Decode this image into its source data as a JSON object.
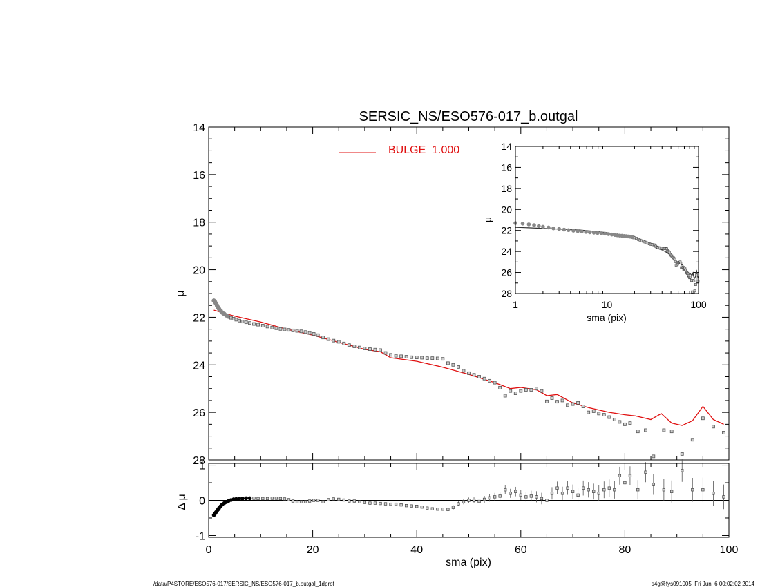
{
  "chart_data": [
    {
      "type": "scatter",
      "panel": "main",
      "title": "SERSIC_NS/ESO576-017_b.outgal",
      "xlabel": "sma (pix)",
      "ylabel": "μ",
      "xlim": [
        0,
        100
      ],
      "ylim": [
        28,
        14
      ],
      "x_ticks": [
        "0",
        "20",
        "40",
        "60",
        "80",
        "100"
      ],
      "y_ticks": [
        "14",
        "16",
        "18",
        "20",
        "22",
        "24",
        "26",
        "28"
      ],
      "legend": {
        "placement": "top-center",
        "label": "BULGE  1.000",
        "color": "#e01010"
      },
      "series": [
        {
          "kind": "points",
          "color": "#555555",
          "x": [
            1.0,
            1.2,
            1.4,
            1.6,
            1.8,
            2.0,
            2.3,
            2.6,
            3.0,
            3.4,
            3.8,
            4.3,
            4.8,
            5.3,
            5.9,
            6.5,
            7.2,
            7.9,
            8.7,
            9.5,
            10.4,
            11.3,
            12.2,
            13.0,
            13.8,
            14.6,
            15.4,
            16.2,
            17.0,
            17.8,
            18.6,
            19.4,
            20.2,
            21.0,
            22.0,
            23.0,
            24.0,
            25.0,
            26.0,
            27.0,
            28.0,
            29.0,
            30.0,
            31.0,
            32.0,
            33.0,
            34.0,
            35.0,
            36.0,
            37.0,
            38.0,
            39.0,
            40.0,
            41.0,
            42.0,
            43.0,
            44.0,
            45.0,
            46.0,
            47.0,
            48.0,
            49.0,
            50.0,
            51.0,
            52.0,
            53.0,
            54.0,
            55.0,
            56.0,
            57.0,
            58.0,
            59.0,
            60.0,
            61.0,
            62.0,
            63.0,
            64.0,
            65.0,
            66.0,
            67.0,
            68.0,
            69.0,
            70.0,
            71.0,
            72.0,
            73.0,
            74.0,
            75.0,
            76.0,
            77.0,
            78.0,
            79.0,
            80.0,
            81.0,
            82.5,
            84.0,
            85.5,
            87.5,
            89.0,
            91.0,
            93.0,
            95.0,
            97.0,
            99.0
          ],
          "y": [
            21.3,
            21.35,
            21.42,
            21.5,
            21.58,
            21.65,
            21.72,
            21.8,
            21.86,
            21.92,
            21.97,
            22.02,
            22.06,
            22.1,
            22.14,
            22.18,
            22.21,
            22.24,
            22.28,
            22.31,
            22.35,
            22.39,
            22.43,
            22.46,
            22.49,
            22.51,
            22.53,
            22.55,
            22.57,
            22.59,
            22.62,
            22.66,
            22.7,
            22.75,
            22.85,
            22.92,
            22.98,
            23.03,
            23.1,
            23.17,
            23.22,
            23.27,
            23.31,
            23.34,
            23.36,
            23.38,
            23.5,
            23.58,
            23.62,
            23.64,
            23.66,
            23.68,
            23.69,
            23.7,
            23.72,
            23.72,
            23.73,
            23.75,
            23.93,
            24.0,
            24.09,
            24.25,
            24.35,
            24.42,
            24.5,
            24.58,
            24.67,
            24.75,
            24.96,
            25.3,
            25.1,
            25.2,
            25.1,
            25.05,
            25.05,
            25.0,
            25.1,
            25.54,
            25.4,
            25.55,
            25.5,
            25.7,
            25.65,
            25.6,
            25.75,
            26.0,
            25.95,
            26.05,
            26.1,
            26.2,
            26.3,
            26.4,
            26.5,
            26.45,
            26.8,
            26.75,
            27.85,
            26.75,
            26.8,
            27.75,
            27.15,
            26.25,
            26.6,
            26.85
          ]
        },
        {
          "kind": "line",
          "name": "BULGE  1.000",
          "color": "#e01010",
          "x": [
            1,
            5,
            10,
            15,
            20,
            25,
            30,
            33,
            35,
            40,
            45,
            50,
            55,
            58,
            60,
            63,
            65,
            67,
            70,
            73,
            77,
            80,
            82,
            85,
            87,
            89,
            91,
            93,
            95,
            97,
            99
          ],
          "y": [
            21.7,
            21.95,
            22.2,
            22.5,
            22.75,
            23.05,
            23.35,
            23.45,
            23.7,
            23.85,
            24.1,
            24.4,
            24.75,
            25.0,
            24.95,
            25.05,
            25.3,
            25.25,
            25.6,
            25.8,
            26.0,
            26.1,
            26.15,
            26.3,
            26.05,
            26.45,
            26.55,
            26.35,
            25.75,
            26.3,
            26.5
          ]
        }
      ]
    },
    {
      "type": "scatter",
      "panel": "residual",
      "xlabel": "sma (pix)",
      "ylabel": "Δ μ",
      "xlim": [
        0,
        100
      ],
      "ylim": [
        -1.05,
        1.05
      ],
      "x_ticks": [
        "0",
        "20",
        "40",
        "60",
        "80",
        "100"
      ],
      "y_ticks": [
        "1",
        "0",
        "-1"
      ],
      "series": [
        {
          "kind": "points",
          "color": "#333333",
          "x": [
            1.0,
            1.2,
            1.4,
            1.6,
            1.8,
            2.0,
            2.3,
            2.6,
            3.0,
            3.4,
            3.8,
            4.3,
            4.8,
            5.3,
            5.9,
            6.5,
            7.2,
            7.9,
            8.7,
            9.5,
            10.4,
            11.3,
            12.2,
            13.0,
            13.8,
            14.6,
            15.4,
            16.2,
            17.0,
            17.8,
            18.6,
            19.4,
            20.2,
            21.0,
            22.0,
            23.0,
            24.0,
            25.0,
            26.0,
            27.0,
            28.0,
            29.0,
            30.0,
            31.0,
            32.0,
            33.0,
            34.0,
            35.0,
            36.0,
            37.0,
            38.0,
            39.0,
            40.0,
            41.0,
            42.0,
            43.0,
            44.0,
            45.0,
            46.0,
            47.0,
            48.0,
            49.0,
            50.0,
            51.0,
            52.0,
            53.0,
            54.0,
            55.0,
            56.0,
            57.0,
            58.0,
            59.0,
            60.0,
            61.0,
            62.0,
            63.0,
            64.0,
            65.0,
            66.0,
            67.0,
            68.0,
            69.0,
            70.0,
            71.0,
            72.0,
            73.0,
            74.0,
            75.0,
            76.0,
            77.0,
            78.0,
            79.0,
            80.0,
            81.0,
            82.5,
            84.0,
            85.5,
            87.5,
            89.0,
            91.0,
            93.0,
            95.0,
            97.0,
            99.0
          ],
          "y": [
            -0.42,
            -0.38,
            -0.34,
            -0.3,
            -0.26,
            -0.22,
            -0.17,
            -0.12,
            -0.08,
            -0.05,
            -0.02,
            0.01,
            0.03,
            0.04,
            0.05,
            0.05,
            0.06,
            0.06,
            0.06,
            0.05,
            0.05,
            0.05,
            0.06,
            0.06,
            0.05,
            0.04,
            0.02,
            -0.02,
            -0.04,
            -0.04,
            -0.04,
            -0.02,
            0.0,
            0.0,
            -0.04,
            0.02,
            0.04,
            0.03,
            0.01,
            -0.02,
            -0.02,
            -0.04,
            -0.06,
            -0.08,
            -0.08,
            -0.09,
            -0.1,
            -0.11,
            -0.11,
            -0.13,
            -0.15,
            -0.16,
            -0.17,
            -0.19,
            -0.22,
            -0.24,
            -0.25,
            -0.25,
            -0.26,
            -0.2,
            -0.1,
            -0.04,
            0.0,
            0.0,
            -0.03,
            0.03,
            0.07,
            0.1,
            0.12,
            0.3,
            0.2,
            0.25,
            0.15,
            0.1,
            0.12,
            0.1,
            0.05,
            0.0,
            0.2,
            0.35,
            0.2,
            0.35,
            0.25,
            0.15,
            0.35,
            0.3,
            0.25,
            0.2,
            0.3,
            0.35,
            0.3,
            0.7,
            0.5,
            0.7,
            0.3,
            0.8,
            0.45,
            0.3,
            0.25,
            0.85,
            0.3,
            0.3,
            0.2,
            0.1
          ]
        }
      ]
    },
    {
      "type": "scatter",
      "panel": "inset",
      "xlabel": "sma (pix)",
      "ylabel": "μ",
      "xscale": "log",
      "xlim": [
        1,
        100
      ],
      "ylim": [
        28,
        14
      ],
      "x_ticks": [
        "1",
        "10",
        "100"
      ],
      "y_ticks": [
        "14",
        "16",
        "18",
        "20",
        "22",
        "24",
        "26",
        "28"
      ]
    }
  ],
  "footer": {
    "left": "/data/P4STORE/ESO576-017/SERSIC_NS/ESO576-017_b.outgal_1dprof",
    "right": "s4g@fys091005  Fri Jun  6 00:02:02 2014"
  }
}
